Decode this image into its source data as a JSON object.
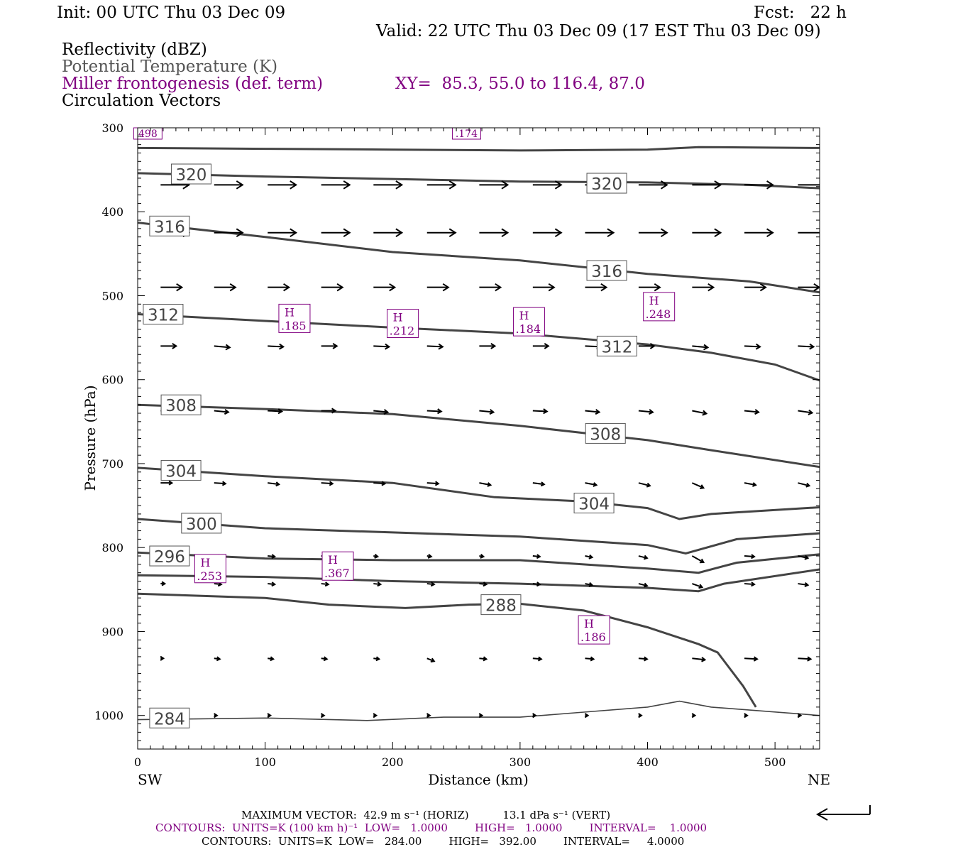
{
  "header": {
    "init": "Init: 00 UTC Thu 03 Dec 09",
    "fcst": "Fcst:   22 h",
    "valid": "Valid: 22 UTC Thu 03 Dec 09 (17 EST Thu 03 Dec 09)",
    "field_reflectivity": "Reflectivity (dBZ)",
    "field_theta": "Potential Temperature (K)",
    "field_miller": "Miller frontogenesis (def. term)",
    "field_circ": "Circulation Vectors",
    "xy": "XY=  85.3, 55.0 to 116.4, 87.0"
  },
  "colors": {
    "theta": "#444444",
    "miller": "#800080",
    "vector": "#000000"
  },
  "footer": {
    "max_vector": "MAXIMUM VECTOR:  42.9 m s⁻¹ (HORIZ)          13.1 dPa s⁻¹ (VERT)",
    "contours_miller": "CONTOURS:  UNITS=K (100 km h)⁻¹  LOW=   1.0000        HIGH=   1.0000        INTERVAL=    1.0000",
    "contours_theta": "CONTOURS:  UNITS=K  LOW=   284.00        HIGH=   392.00        INTERVAL=     4.0000"
  },
  "chart_data": {
    "type": "line",
    "xlabel": "Distance (km)",
    "ylabel": "Pressure (hPa)",
    "xlim": [
      0,
      535
    ],
    "ylim": [
      1040,
      300
    ],
    "x_ticks": [
      "0",
      "100",
      "200",
      "300",
      "400",
      "500"
    ],
    "y_ticks": [
      "300",
      "400",
      "500",
      "600",
      "700",
      "800",
      "900",
      "1000"
    ],
    "x_end_labels": {
      "left": "SW",
      "right": "NE"
    },
    "theta_series": [
      {
        "name": "324",
        "points": [
          [
            0,
            324
          ],
          [
            100,
            325
          ],
          [
            200,
            326
          ],
          [
            300,
            327
          ],
          [
            400,
            326
          ],
          [
            440,
            323
          ],
          [
            535,
            324
          ]
        ]
      },
      {
        "name": "320",
        "label": "320",
        "points": [
          [
            0,
            354
          ],
          [
            100,
            358
          ],
          [
            200,
            361
          ],
          [
            300,
            364
          ],
          [
            400,
            365
          ],
          [
            480,
            368
          ],
          [
            535,
            372
          ]
        ],
        "label_at": [
          42,
          355
        ],
        "label2_at": [
          368,
          366
        ]
      },
      {
        "name": "316",
        "label": "316",
        "points": [
          [
            0,
            413
          ],
          [
            100,
            430
          ],
          [
            200,
            448
          ],
          [
            300,
            458
          ],
          [
            400,
            474
          ],
          [
            480,
            483
          ],
          [
            535,
            496
          ]
        ],
        "label_at": [
          25,
          417
        ],
        "label2_at": [
          368,
          470
        ]
      },
      {
        "name": "312",
        "label": "312",
        "points": [
          [
            0,
            522
          ],
          [
            100,
            530
          ],
          [
            200,
            538
          ],
          [
            300,
            545
          ],
          [
            400,
            558
          ],
          [
            450,
            568
          ],
          [
            500,
            582
          ],
          [
            535,
            601
          ]
        ],
        "label_at": [
          20,
          522
        ],
        "label2_at": [
          376,
          560
        ]
      },
      {
        "name": "308",
        "label": "308",
        "points": [
          [
            0,
            630
          ],
          [
            100,
            635
          ],
          [
            200,
            641
          ],
          [
            300,
            655
          ],
          [
            400,
            672
          ],
          [
            450,
            684
          ],
          [
            535,
            704
          ]
        ],
        "label_at": [
          34,
          630
        ],
        "label2_at": [
          367,
          664
        ]
      },
      {
        "name": "304",
        "label": "304",
        "points": [
          [
            0,
            705
          ],
          [
            100,
            715
          ],
          [
            200,
            723
          ],
          [
            280,
            740
          ],
          [
            350,
            745
          ],
          [
            400,
            753
          ],
          [
            425,
            766
          ],
          [
            450,
            760
          ],
          [
            535,
            752
          ]
        ],
        "label_at": [
          34,
          708
        ],
        "label2_at": [
          358,
          747
        ]
      },
      {
        "name": "300",
        "label": "300",
        "points": [
          [
            0,
            766
          ],
          [
            100,
            777
          ],
          [
            200,
            782
          ],
          [
            300,
            787
          ],
          [
            400,
            797
          ],
          [
            430,
            807
          ],
          [
            470,
            790
          ],
          [
            535,
            783
          ]
        ],
        "label_at": [
          50,
          771
        ]
      },
      {
        "name": "296",
        "label": "296",
        "points": [
          [
            0,
            806
          ],
          [
            100,
            813
          ],
          [
            200,
            815
          ],
          [
            300,
            815
          ],
          [
            400,
            825
          ],
          [
            440,
            830
          ],
          [
            470,
            818
          ],
          [
            535,
            808
          ]
        ],
        "label_at": [
          25,
          810
        ]
      },
      {
        "name": "292",
        "points": [
          [
            0,
            833
          ],
          [
            100,
            835
          ],
          [
            200,
            840
          ],
          [
            300,
            843
          ],
          [
            400,
            848
          ],
          [
            440,
            852
          ],
          [
            460,
            843
          ],
          [
            535,
            826
          ]
        ]
      },
      {
        "name": "288",
        "label": "288",
        "points": [
          [
            0,
            855
          ],
          [
            100,
            860
          ],
          [
            150,
            868
          ],
          [
            210,
            872
          ],
          [
            260,
            868
          ],
          [
            300,
            867
          ],
          [
            350,
            875
          ],
          [
            400,
            895
          ],
          [
            440,
            915
          ],
          [
            455,
            925
          ],
          [
            475,
            965
          ],
          [
            485,
            990
          ]
        ],
        "label_at": [
          285,
          868
        ]
      },
      {
        "name": "284",
        "label": "284",
        "points": [
          [
            0,
            1005
          ],
          [
            100,
            1003
          ],
          [
            180,
            1006
          ],
          [
            240,
            1002
          ],
          [
            300,
            1002
          ],
          [
            350,
            996
          ],
          [
            400,
            990
          ],
          [
            425,
            983
          ],
          [
            450,
            990
          ],
          [
            535,
            1000
          ]
        ],
        "label_at": [
          25,
          1003
        ]
      }
    ],
    "miller_maxima": [
      {
        "label": "H",
        "value": ".185",
        "x": 123,
        "p": 527
      },
      {
        "label": "H",
        "value": ".212",
        "x": 208,
        "p": 533
      },
      {
        "label": "H",
        "value": ".184",
        "x": 307,
        "p": 531
      },
      {
        "label": "H",
        "value": ".248",
        "x": 409,
        "p": 513
      },
      {
        "label": "H",
        "value": ".253",
        "x": 57,
        "p": 825
      },
      {
        "label": "H",
        "value": ".367",
        "x": 157,
        "p": 822
      },
      {
        "label": "H",
        "value": ".186",
        "x": 358,
        "p": 898
      }
    ],
    "miller_edge_labels": [
      {
        "value": "498",
        "x": 8,
        "p": 305
      },
      {
        "value": ".174",
        "x": 258,
        "p": 304
      }
    ],
    "vectors": {
      "columns_km": [
        18,
        60,
        102,
        144,
        185,
        227,
        268,
        310,
        351,
        393,
        435,
        476,
        518
      ],
      "rows": [
        {
          "p": 368,
          "u": [
            40,
            40,
            40,
            40,
            40,
            40,
            40,
            40,
            40,
            40,
            40,
            40,
            40
          ],
          "v": [
            0,
            0,
            0,
            0,
            0,
            0,
            0,
            0,
            0,
            0,
            0,
            0,
            0
          ]
        },
        {
          "p": 425,
          "u": [
            40,
            40,
            40,
            40,
            40,
            40,
            40,
            40,
            40,
            40,
            40,
            40,
            40
          ],
          "v": [
            0,
            0,
            0,
            0,
            0,
            0,
            0,
            0,
            0,
            0,
            0,
            0,
            0
          ]
        },
        {
          "p": 490,
          "u": [
            30,
            30,
            30,
            30,
            30,
            30,
            30,
            30,
            30,
            30,
            30,
            30,
            30
          ],
          "v": [
            0,
            0,
            0,
            0,
            0,
            0,
            0,
            0,
            0,
            0,
            0,
            0,
            0
          ]
        },
        {
          "p": 560,
          "u": [
            22,
            22,
            22,
            22,
            22,
            22,
            22,
            22,
            22,
            22,
            22,
            22,
            22
          ],
          "v": [
            0,
            2,
            1,
            0,
            1,
            1,
            0,
            0,
            1,
            0,
            2,
            1,
            1
          ]
        },
        {
          "p": 637,
          "u": [
            20,
            20,
            20,
            20,
            20,
            20,
            20,
            20,
            20,
            20,
            20,
            20,
            20
          ],
          "v": [
            0,
            2,
            1,
            0,
            2,
            1,
            2,
            1,
            2,
            2,
            4,
            2,
            3
          ]
        },
        {
          "p": 723,
          "u": [
            16,
            16,
            16,
            16,
            16,
            16,
            16,
            16,
            16,
            16,
            16,
            16,
            16
          ],
          "v": [
            0,
            1,
            2,
            1,
            1,
            1,
            3,
            2,
            3,
            4,
            7,
            3,
            4
          ]
        },
        {
          "p": 810,
          "u": [
            6,
            10,
            10,
            10,
            6,
            6,
            6,
            10,
            10,
            12,
            16,
            14,
            14
          ],
          "v": [
            0,
            1,
            1,
            1,
            1,
            1,
            1,
            1,
            2,
            3,
            9,
            1,
            3
          ]
        },
        {
          "p": 843,
          "u": [
            6,
            10,
            10,
            10,
            10,
            10,
            10,
            10,
            10,
            12,
            14,
            14,
            14
          ],
          "v": [
            0,
            1,
            1,
            1,
            1,
            1,
            1,
            1,
            2,
            3,
            5,
            1,
            2
          ]
        },
        {
          "p": 932,
          "u": [
            4,
            8,
            8,
            8,
            8,
            10,
            10,
            12,
            12,
            12,
            18,
            18,
            18
          ],
          "v": [
            0,
            1,
            1,
            1,
            1,
            4,
            1,
            1,
            1,
            1,
            2,
            1,
            1
          ]
        },
        {
          "p": 1000,
          "u": [
            4,
            4,
            4,
            4,
            4,
            4,
            4,
            4,
            4,
            4,
            4,
            4,
            4
          ],
          "v": [
            0,
            0,
            0,
            0,
            0,
            0,
            0,
            0,
            0,
            0,
            0,
            0,
            0
          ]
        }
      ]
    }
  }
}
